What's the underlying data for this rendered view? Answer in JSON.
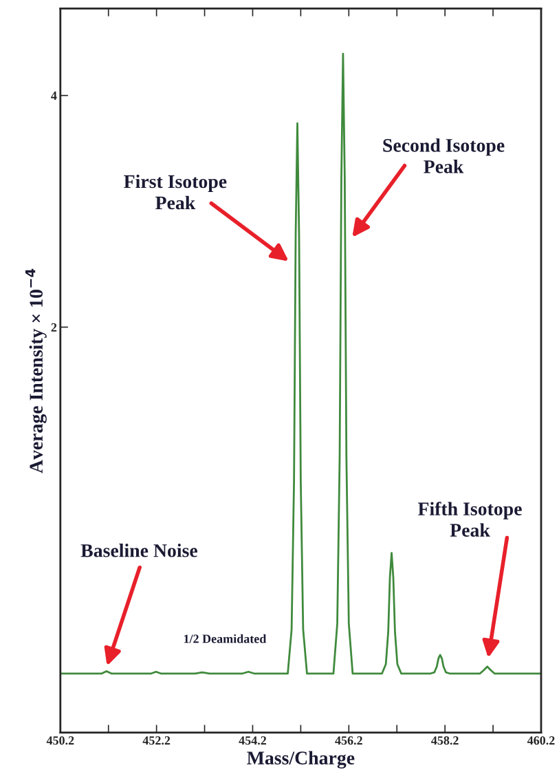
{
  "chart_data": {
    "type": "line",
    "xlabel": "Mass/Charge",
    "ylabel": "Average Intensity × 10$^{−4}$",
    "series": [
      {
        "color": "#3f8a3c",
        "x": [
          450.2,
          451.06,
          451.16,
          451.26,
          452.09,
          452.19,
          452.29,
          453.0,
          453.15,
          453.3,
          453.99,
          454.11,
          454.23,
          454.93,
          455.01,
          455.06,
          455.095,
          455.13,
          455.165,
          455.2,
          455.25,
          455.33,
          455.88,
          455.96,
          456.01,
          456.045,
          456.08,
          456.115,
          456.15,
          456.2,
          456.28,
          456.89,
          456.97,
          457.02,
          457.055,
          457.09,
          457.125,
          457.16,
          457.21,
          457.29,
          457.9,
          457.98,
          458.03,
          458.065,
          458.1,
          458.135,
          458.17,
          458.22,
          458.3,
          458.93,
          459.01,
          459.08,
          459.15,
          459.23,
          460.2
        ],
        "values": [
          -0.99,
          -0.99,
          -0.97,
          -0.99,
          -0.99,
          -0.975,
          -0.99,
          -0.99,
          -0.98,
          -0.99,
          -0.99,
          -0.975,
          -0.99,
          -0.99,
          -0.61,
          0.67,
          2.81,
          3.76,
          2.81,
          0.67,
          -0.61,
          -0.99,
          -0.99,
          -0.56,
          0.88,
          3.29,
          4.36,
          3.29,
          0.88,
          -0.56,
          -0.99,
          -0.99,
          -0.91,
          -0.63,
          -0.16,
          0.05,
          -0.16,
          -0.63,
          -0.91,
          -0.99,
          -0.99,
          -0.98,
          -0.93,
          -0.86,
          -0.83,
          -0.86,
          -0.93,
          -0.98,
          -0.99,
          -0.99,
          -0.96,
          -0.93,
          -0.96,
          -0.99,
          -0.99
        ]
      }
    ],
    "xlim": [
      450.2,
      460.2
    ],
    "xticks": [
      450.2,
      {
        "value": 451.2,
        "label": null
      },
      452.2,
      {
        "value": 453.2,
        "label": null
      },
      454.2,
      {
        "value": 455.2,
        "label": null
      },
      456.2,
      {
        "value": 457.2,
        "label": null
      },
      458.2,
      {
        "value": 459.2,
        "label": null
      },
      460.2
    ],
    "ylim": [
      -1.5,
      4.75
    ],
    "yticks": [
      2,
      4
    ],
    "grid": false,
    "legend": false,
    "marker": "none",
    "line_style": "solid",
    "annotations": [
      "First Isotope\nPeak",
      "Second Isotope\nPeak",
      "Baseline Noise",
      "Fifth Isotope\nPeak",
      "1/2 Deamidated"
    ]
  }
}
